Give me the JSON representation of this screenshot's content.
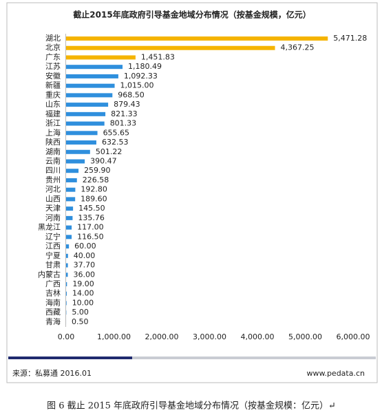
{
  "chart_data": {
    "type": "hbar",
    "title": "截止2015年底政府引导基金地域分布情况（按基金规模，亿元）",
    "categories": [
      "湖北",
      "北京",
      "广东",
      "江苏",
      "安徽",
      "新疆",
      "重庆",
      "山东",
      "福建",
      "浙江",
      "上海",
      "陕西",
      "湖南",
      "云南",
      "四川",
      "贵州",
      "河北",
      "山西",
      "天津",
      "河南",
      "黑龙江",
      "辽宁",
      "江西",
      "宁夏",
      "甘肃",
      "内蒙古",
      "广西",
      "吉林",
      "海南",
      "西藏",
      "青海"
    ],
    "values": [
      5471.28,
      4367.25,
      1451.83,
      1180.49,
      1092.33,
      1015.0,
      968.5,
      879.43,
      821.33,
      801.33,
      655.65,
      632.53,
      501.22,
      390.47,
      259.9,
      226.58,
      192.8,
      189.6,
      145.5,
      135.76,
      117.0,
      116.5,
      60.0,
      40.0,
      37.7,
      36.0,
      19.0,
      14.0,
      10.0,
      5.0,
      0.5
    ],
    "value_labels": [
      "5,471.28",
      "4,367.25",
      "1,451.83",
      "1,180.49",
      "1,092.33",
      "1,015.00",
      "968.50",
      "879.43",
      "821.33",
      "801.33",
      "655.65",
      "632.53",
      "501.22",
      "390.47",
      "259.90",
      "226.58",
      "192.80",
      "189.60",
      "145.50",
      "135.76",
      "117.00",
      "116.50",
      "60.00",
      "40.00",
      "37.70",
      "36.00",
      "19.00",
      "14.00",
      "10.00",
      "5.00",
      "0.50"
    ],
    "colors": [
      "#f5b400",
      "#f5b400",
      "#f5b400",
      "#2f8fdd",
      "#2f8fdd",
      "#2f8fdd",
      "#2f8fdd",
      "#2f8fdd",
      "#2f8fdd",
      "#2f8fdd",
      "#2f8fdd",
      "#2f8fdd",
      "#2f8fdd",
      "#2f8fdd",
      "#2f8fdd",
      "#2f8fdd",
      "#2f8fdd",
      "#2f8fdd",
      "#2f8fdd",
      "#2f8fdd",
      "#2f8fdd",
      "#2f8fdd",
      "#2f8fdd",
      "#2f8fdd",
      "#2f8fdd",
      "#2f8fdd",
      "#2f8fdd",
      "#2f8fdd",
      "#2f8fdd",
      "#2f8fdd",
      "#2f8fdd"
    ],
    "xlim": [
      0,
      6000
    ],
    "xticks": [
      {
        "value": 0,
        "label": "0.00"
      },
      {
        "value": 1000,
        "label": "1,000.00"
      },
      {
        "value": 2000,
        "label": "2,000.00"
      },
      {
        "value": 3000,
        "label": "3,000.00"
      },
      {
        "value": 4000,
        "label": "4,000.00"
      },
      {
        "value": 5000,
        "label": "5,000.00"
      },
      {
        "value": 6000,
        "label": "6,000.00"
      }
    ],
    "grid": false,
    "source": "来源：私募通 2016.01",
    "website": "www.pedata.cn",
    "caption": "图 6  截止 2015 年底政府引导基金地域分布情况（按基金规模：亿元）↵"
  }
}
